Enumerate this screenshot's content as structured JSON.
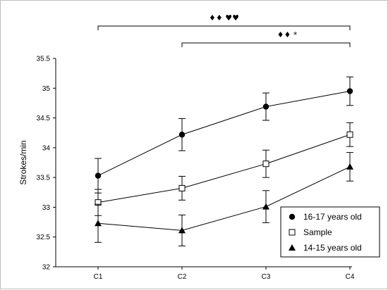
{
  "chart_data": {
    "type": "line",
    "title": "",
    "xlabel": "",
    "ylabel": "Strokes/min",
    "categories": [
      "C1",
      "C2",
      "C3",
      "C4"
    ],
    "ylim": [
      32,
      35.5
    ],
    "yticks": [
      32,
      32.5,
      33,
      33.5,
      34,
      34.5,
      35,
      35.5
    ],
    "ytick_labels": [
      "32",
      "32.5",
      "33",
      "33.5",
      "34",
      "34.5",
      "35",
      "35.5"
    ],
    "grid": false,
    "legend_position": "bottom-right",
    "series": [
      {
        "name": "16-17 years old",
        "marker": "filled-circle",
        "values": [
          33.53,
          34.22,
          34.69,
          34.95
        ],
        "err": [
          0.29,
          0.27,
          0.23,
          0.24
        ]
      },
      {
        "name": "Sample",
        "marker": "open-square",
        "values": [
          33.08,
          33.32,
          33.73,
          34.22
        ],
        "err": [
          0.22,
          0.2,
          0.23,
          0.2
        ]
      },
      {
        "name": "14-15 years old",
        "marker": "filled-triangle",
        "values": [
          32.73,
          32.61,
          33.01,
          33.68
        ],
        "err": [
          0.32,
          0.26,
          0.27,
          0.24
        ]
      }
    ],
    "significance": [
      {
        "from": "C1",
        "to": "C4",
        "label": "♦♦          ♥♥"
      },
      {
        "from": "C2",
        "to": "C4",
        "label": "♦♦     *"
      }
    ]
  }
}
